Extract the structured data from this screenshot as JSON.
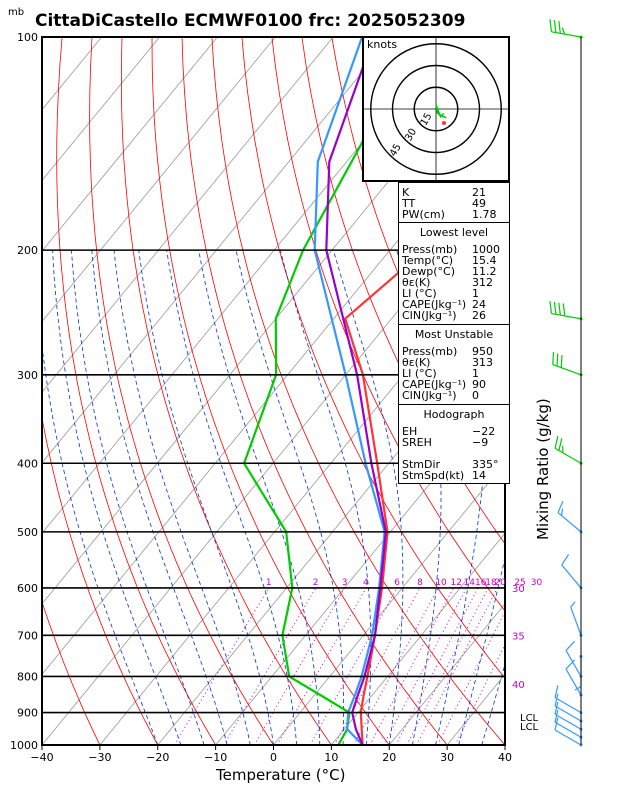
{
  "title": "CittaDiCastello ECMWF0100 frc: 2025052309",
  "pressure_unit": "mb",
  "xlabel": "Temperature (°C)",
  "right_label": "Mixing Ratio (g/kg)",
  "hodograph": {
    "unit": "knots",
    "rings": [
      "15",
      "30",
      "45"
    ]
  },
  "lcl_labels": [
    "LCL",
    "LCL"
  ],
  "indices_top": [
    {
      "k": "K",
      "v": "21"
    },
    {
      "k": "TT",
      "v": "49"
    },
    {
      "k": "PW(cm)",
      "v": "1.78"
    }
  ],
  "lowest": {
    "header": "Lowest level",
    "rows": [
      {
        "k": "Press(mb)",
        "v": "1000"
      },
      {
        "k": "Temp(°C)",
        "v": "15.4"
      },
      {
        "k": "Dewp(°C)",
        "v": "11.2"
      },
      {
        "k": "θε(K)",
        "v": "312"
      },
      {
        "k": "LI (°C)",
        "v": "1"
      },
      {
        "k": "CAPE(Jkg⁻¹)",
        "v": "24"
      },
      {
        "k": "CIN(Jkg⁻¹)",
        "v": "26"
      }
    ]
  },
  "unstable": {
    "header": "Most Unstable",
    "rows": [
      {
        "k": "Press(mb)",
        "v": "950"
      },
      {
        "k": "θε(K)",
        "v": "313"
      },
      {
        "k": "LI (°C)",
        "v": "1"
      },
      {
        "k": "CAPE(Jkg⁻¹)",
        "v": "90"
      },
      {
        "k": "CIN(Jkg⁻¹)",
        "v": "0"
      }
    ]
  },
  "hodo_table": {
    "header": "Hodograph",
    "rows": [
      {
        "k": "EH",
        "v": "−22"
      },
      {
        "k": "SREH",
        "v": "−9"
      },
      {
        "k": "",
        "v": ""
      },
      {
        "k": "StmDir",
        "v": "335°"
      },
      {
        "k": "StmSpd(kt)",
        "v": "14"
      }
    ]
  },
  "colors": {
    "temp": "#ff3333",
    "dewp": "#00cc00",
    "parcel": "#3399ff",
    "virtual": "#9900cc",
    "dry_adiabat": "#ff0000",
    "moist_adiabat": "#0033cc",
    "isotherm": "#999999",
    "mixing": "#cc00cc",
    "barb_low": "#3399ff",
    "barb_high": "#00cc00"
  },
  "chart_data": {
    "type": "line",
    "title": "CittaDiCastello ECMWF0100 frc: 2025052309",
    "xlabel": "Temperature (°C)",
    "ylabel": "mb",
    "xlim": [
      -40,
      40
    ],
    "ylim": [
      1000,
      100
    ],
    "log_y": true,
    "x_ticks": [
      -40,
      -30,
      -20,
      -10,
      0,
      10,
      20,
      30,
      40
    ],
    "y_ticks": [
      1000,
      900,
      800,
      700,
      600,
      500,
      400,
      300,
      200,
      100
    ],
    "mixing_ratio_labels": [
      "1",
      "2",
      "3",
      "4",
      "6",
      "8",
      "10",
      "12",
      "14",
      "16",
      "18",
      "20",
      "25",
      "30"
    ],
    "theta_labels": [
      "30",
      "35",
      "40"
    ],
    "series": [
      {
        "name": "Temperature",
        "p": [
          1000,
          950,
          900,
          850,
          800,
          700,
          600,
          500,
          400,
          300,
          250,
          200,
          150,
          100
        ],
        "t": [
          15.4,
          13,
          10.5,
          8.5,
          6.5,
          2,
          -3.5,
          -10.5,
          -22,
          -37,
          -48,
          -44,
          -30,
          -15
        ]
      },
      {
        "name": "Dewpoint",
        "p": [
          1000,
          950,
          900,
          850,
          800,
          700,
          600,
          500,
          400,
          300,
          250,
          200,
          100
        ],
        "t": [
          11.2,
          10.5,
          8.5,
          1,
          -7,
          -14,
          -19,
          -28,
          -45,
          -52,
          -60,
          -65,
          -75
        ]
      },
      {
        "name": "Parcel",
        "p": [
          1000,
          950,
          900,
          850,
          800,
          700,
          600,
          500,
          400,
          300,
          200,
          150,
          100
        ],
        "t": [
          15.4,
          10.5,
          8.3,
          7,
          5.5,
          1.5,
          -4,
          -11,
          -24,
          -40,
          -63,
          -75,
          -85
        ]
      },
      {
        "name": "Virtual",
        "p": [
          1000,
          950,
          900,
          850,
          800,
          700,
          600,
          500,
          400,
          300,
          200,
          150,
          100
        ],
        "t": [
          15.4,
          12,
          9,
          7.5,
          6,
          2,
          -3.8,
          -10.8,
          -23,
          -38,
          -61,
          -73,
          -83
        ]
      }
    ],
    "wind_barbs": [
      {
        "p": 1000,
        "dir": 300,
        "spd": 10
      },
      {
        "p": 975,
        "dir": 300,
        "spd": 10
      },
      {
        "p": 950,
        "dir": 300,
        "spd": 10
      },
      {
        "p": 925,
        "dir": 300,
        "spd": 10
      },
      {
        "p": 900,
        "dir": 300,
        "spd": 10
      },
      {
        "p": 850,
        "dir": 330,
        "spd": 10
      },
      {
        "p": 800,
        "dir": 330,
        "spd": 10
      },
      {
        "p": 750,
        "dir": 180,
        "spd": 5
      },
      {
        "p": 700,
        "dir": 340,
        "spd": 5
      },
      {
        "p": 600,
        "dir": 320,
        "spd": 10
      },
      {
        "p": 500,
        "dir": 310,
        "spd": 15
      },
      {
        "p": 400,
        "dir": 300,
        "spd": 25
      },
      {
        "p": 300,
        "dir": 290,
        "spd": 30
      },
      {
        "p": 250,
        "dir": 280,
        "spd": 40
      },
      {
        "p": 100,
        "dir": 280,
        "spd": 35
      }
    ]
  }
}
